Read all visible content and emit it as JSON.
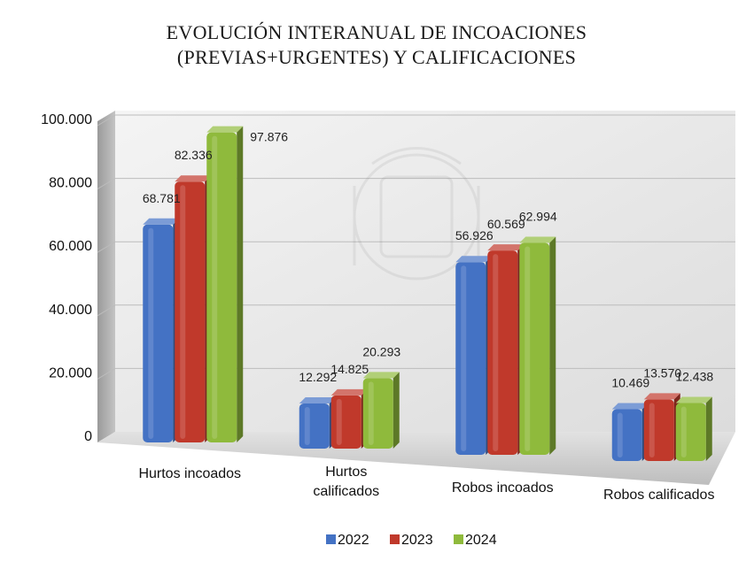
{
  "chart_data": {
    "type": "bar",
    "title_lines": [
      "EVOLUCIÓN INTERANUAL DE INCOACIONES",
      "(PREVIAS+URGENTES) Y CALIFICACIONES"
    ],
    "categories": [
      [
        "Hurtos incoados"
      ],
      [
        "Hurtos",
        "calificados"
      ],
      [
        "Robos incoados"
      ],
      [
        "Robos calificados"
      ]
    ],
    "series": [
      {
        "name": "2022",
        "values": [
          68781,
          12292,
          56926,
          10469
        ],
        "labels": [
          "68.781",
          "12.292",
          "56.926",
          "10.469"
        ],
        "color": "#4472c4"
      },
      {
        "name": "2023",
        "values": [
          82336,
          14825,
          60569,
          13570
        ],
        "labels": [
          "82.336",
          "14.825",
          "60.569",
          "13.570"
        ],
        "color": "#c0392b"
      },
      {
        "name": "2024",
        "values": [
          97876,
          20293,
          62994,
          12438
        ],
        "labels": [
          "97.876",
          "20.293",
          "62.994",
          "12.438"
        ],
        "color": "#8fba3c"
      }
    ],
    "y_ticks": [
      {
        "value": 0,
        "label": "0"
      },
      {
        "value": 20000,
        "label": "20.000"
      },
      {
        "value": 40000,
        "label": "40.000"
      },
      {
        "value": 60000,
        "label": "60.000"
      },
      {
        "value": 80000,
        "label": "80.000"
      },
      {
        "value": 100000,
        "label": "100.000"
      }
    ],
    "ylim": [
      0,
      100000
    ],
    "grid": true,
    "legend_position": "bottom",
    "three_d": true
  }
}
